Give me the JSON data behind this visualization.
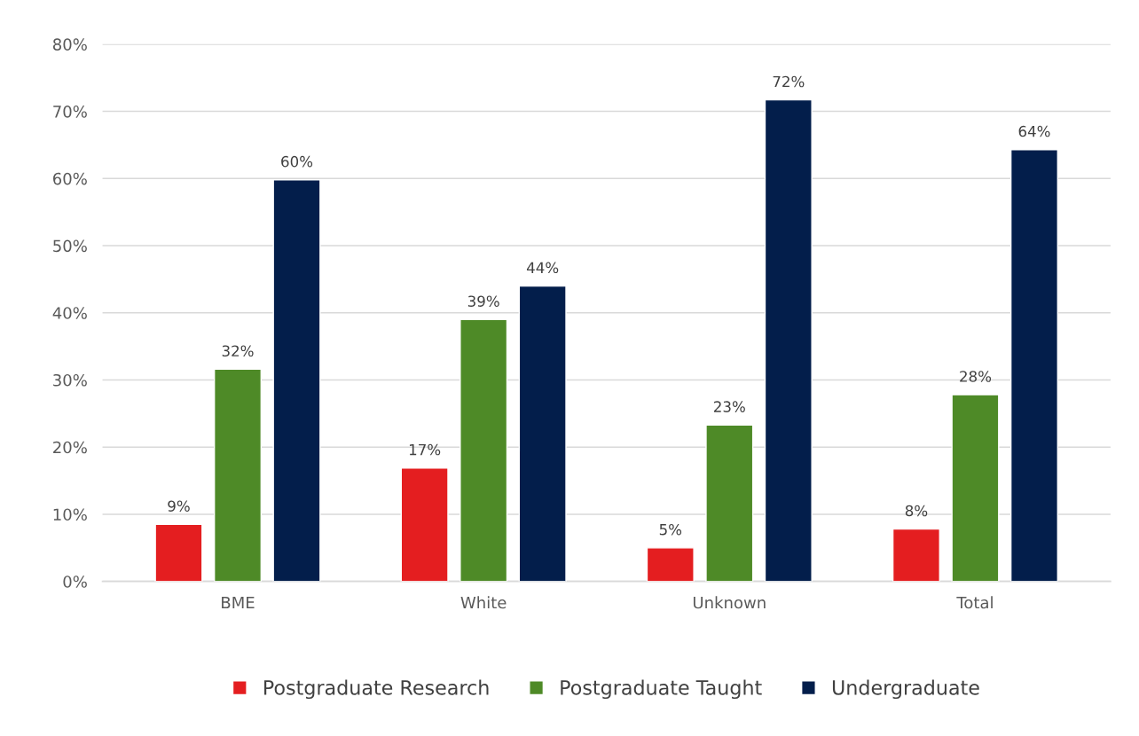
{
  "chart_data": {
    "type": "bar",
    "categories": [
      "BME",
      "White",
      "Unknown",
      "Total"
    ],
    "series": [
      {
        "name": "Postgraduate Research",
        "color": "#e41e20",
        "values": [
          8.5,
          16.9,
          5.0,
          7.8
        ],
        "value_labels": [
          "9%",
          "17%",
          "5%",
          "8%"
        ]
      },
      {
        "name": "Postgraduate Taught",
        "color": "#4e8a27",
        "values": [
          31.6,
          39.0,
          23.3,
          27.8
        ],
        "value_labels": [
          "32%",
          "39%",
          "23%",
          "28%"
        ]
      },
      {
        "name": "Undergraduate",
        "color": "#031e4b",
        "values": [
          59.8,
          44.0,
          71.7,
          64.3
        ],
        "value_labels": [
          "60%",
          "44%",
          "72%",
          "64%"
        ]
      }
    ],
    "ylim": [
      0,
      80
    ],
    "yticks": [
      {
        "value": 0,
        "label": "0%"
      },
      {
        "value": 10,
        "label": "10%"
      },
      {
        "value": 20,
        "label": "20%"
      },
      {
        "value": 30,
        "label": "30%"
      },
      {
        "value": 40,
        "label": "40%"
      },
      {
        "value": 50,
        "label": "50%"
      },
      {
        "value": 60,
        "label": "60%"
      },
      {
        "value": 70,
        "label": "70%"
      },
      {
        "value": 80,
        "label": "80%"
      }
    ],
    "grid": "y",
    "legend": "bottom"
  }
}
